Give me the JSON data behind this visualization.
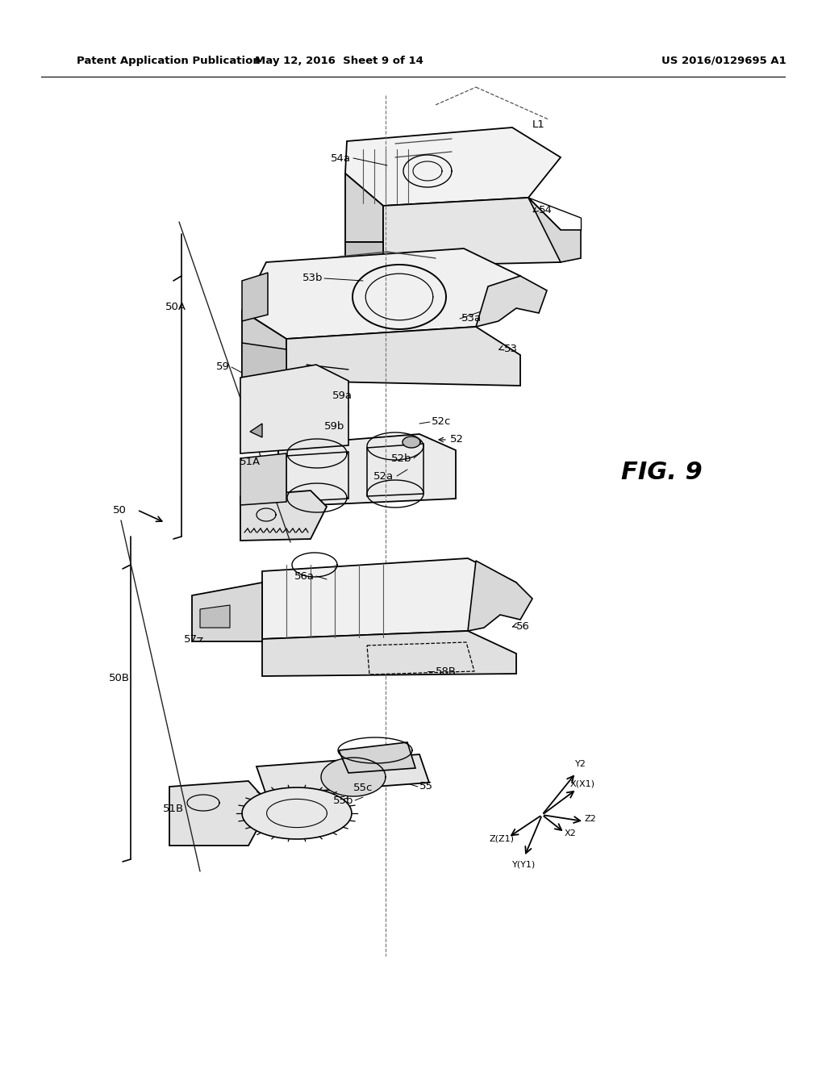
{
  "background_color": "#ffffff",
  "header_left": "Patent Application Publication",
  "header_center": "May 12, 2016  Sheet 9 of 14",
  "header_right": "US 2016/0129695 A1",
  "figure_label": "FIG. 9",
  "text_color": "#000000",
  "line_color": "#000000"
}
